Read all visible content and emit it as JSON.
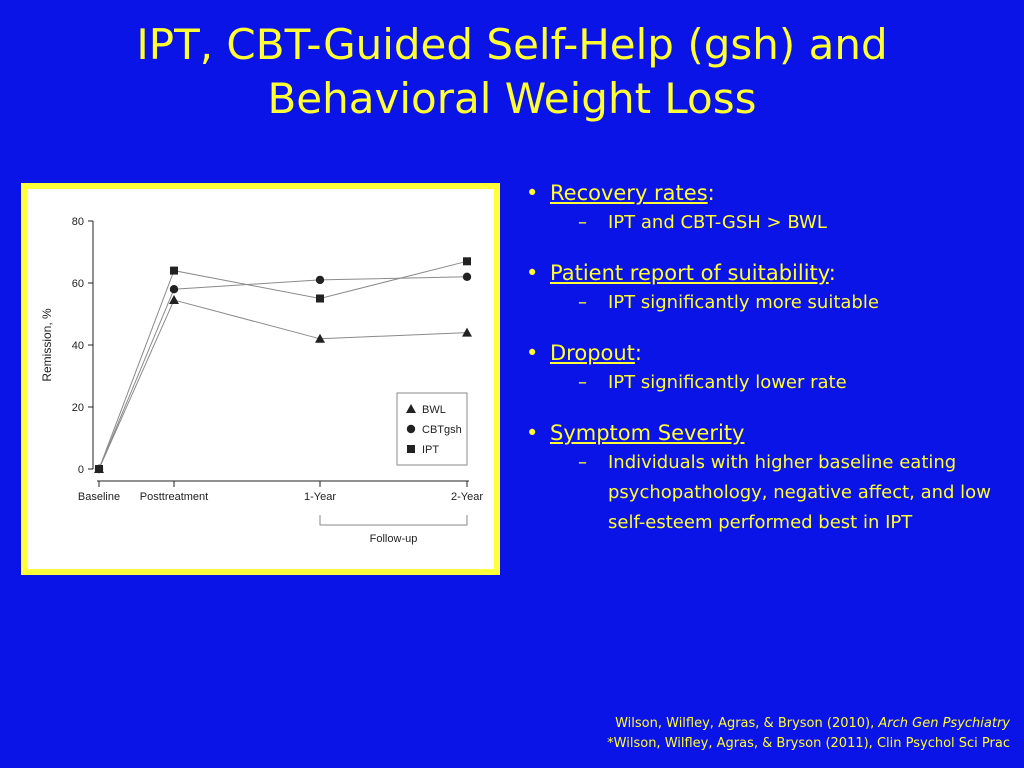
{
  "slide": {
    "title_line1": "IPT, CBT-Guided Self-Help (gsh) and",
    "title_line2": "Behavioral Weight Loss",
    "text_color": "#ffff33",
    "background_color": "#0b14e6"
  },
  "bullets": [
    {
      "head": "Recovery rates",
      "tail": ":",
      "sub": "IPT and CBT-GSH > BWL"
    },
    {
      "head": "Patient report of suitability",
      "tail": ":",
      "sub": "IPT significantly more suitable"
    },
    {
      "head": "Dropout",
      "tail": ":",
      "sub": "IPT significantly lower rate"
    },
    {
      "head": "Symptom Severity",
      "tail": "",
      "sub": "Individuals  with higher baseline eating psychopathology, negative affect, and low self-esteem performed best in IPT"
    }
  ],
  "dash": "–",
  "references": {
    "line1_prefix": "Wilson, Wilfley, Agras, & Bryson (2010), ",
    "line1_journal": "Arch Gen Psychiatry",
    "line2": "*Wilson, Wilfley, Agras, & Bryson (2011), Clin Psychol Sci Prac"
  },
  "chart_data": {
    "type": "line",
    "categories": [
      "Baseline",
      "Posttreatment",
      "1-Year",
      "2-Year"
    ],
    "ylabel": "Remission, %",
    "xlabel": "",
    "bracket_label": "Follow-up",
    "ylim": [
      0,
      80
    ],
    "yticks": [
      0,
      20,
      40,
      60,
      80
    ],
    "grid": false,
    "legend_position": "bottom-right",
    "series": [
      {
        "name": "BWL",
        "marker": "triangle",
        "values": [
          0,
          54.5,
          42,
          44
        ]
      },
      {
        "name": "CBTgsh",
        "marker": "circle",
        "values": [
          0,
          58,
          61,
          62
        ]
      },
      {
        "name": "IPT",
        "marker": "square",
        "values": [
          0,
          64,
          55,
          67
        ]
      }
    ]
  }
}
